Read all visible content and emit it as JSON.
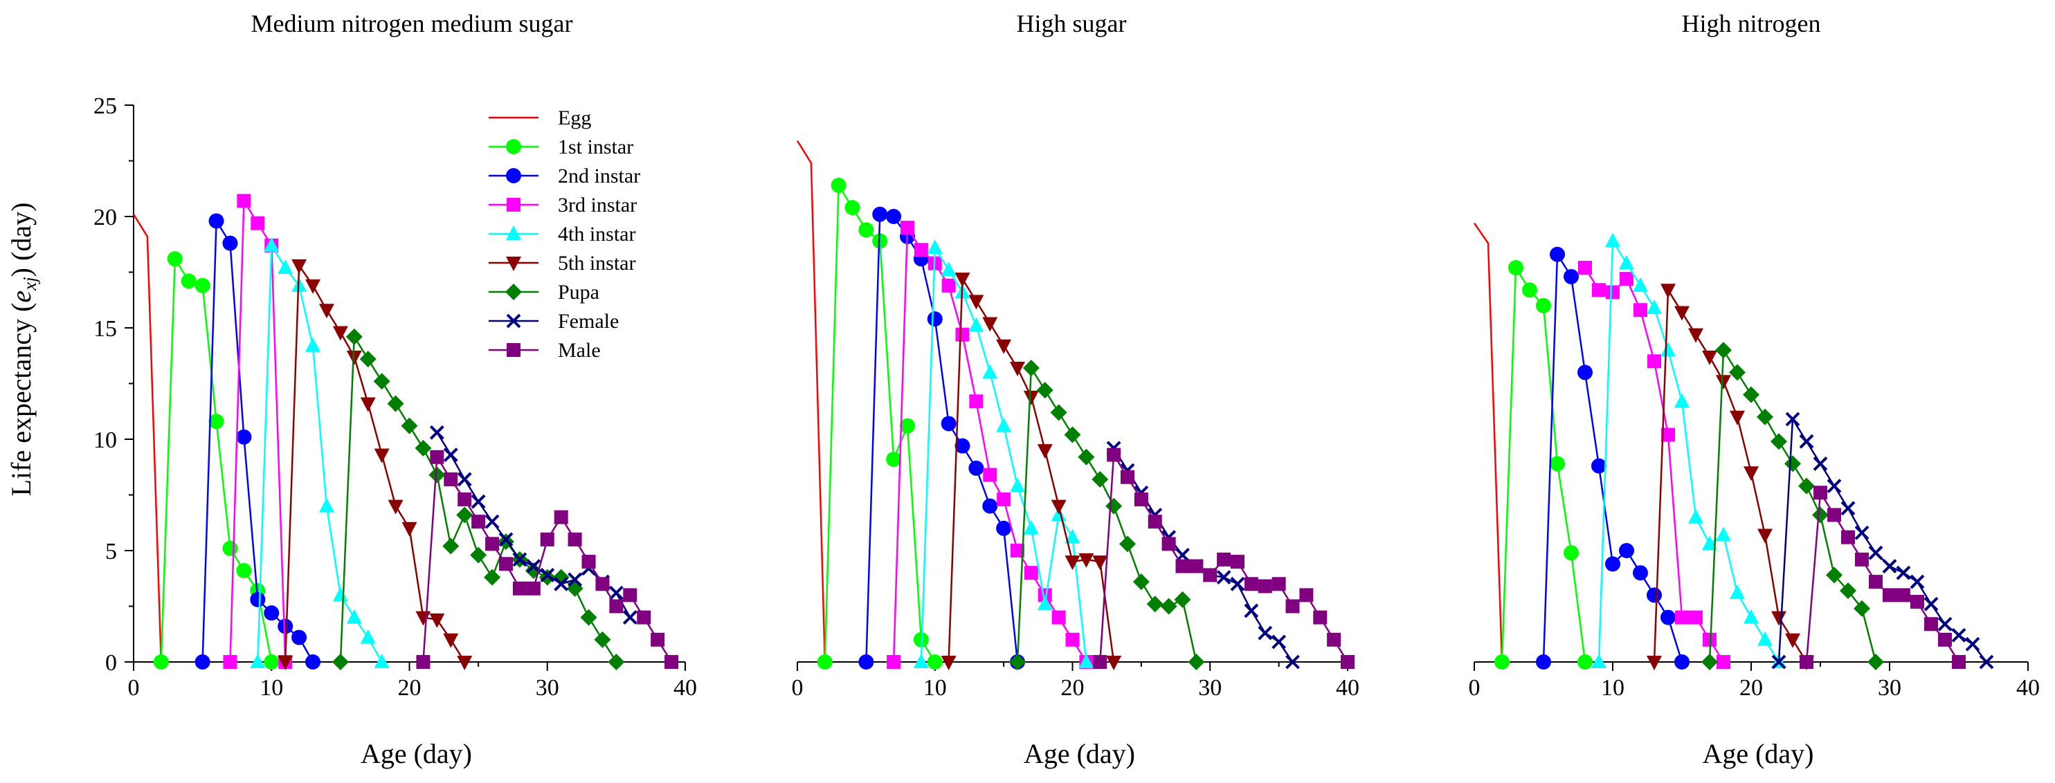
{
  "figure": {
    "y_axis_label": {
      "main": "Life expectancy (",
      "italic": "e",
      "sub": "xj",
      "tail": ") (day)"
    },
    "legend_entries": [
      "Egg",
      "1st instar",
      "2nd instar",
      "3rd instar",
      "4th instar",
      "5th instar",
      "Pupa",
      "Female",
      "Male"
    ]
  },
  "stage_styles": [
    {
      "name": "Egg",
      "color": "#ff0000",
      "marker": "none"
    },
    {
      "name": "1st instar",
      "color": "#00ff00",
      "marker": "circle"
    },
    {
      "name": "2nd instar",
      "color": "#0000ff",
      "marker": "circle"
    },
    {
      "name": "3rd instar",
      "color": "#ff00ff",
      "marker": "square"
    },
    {
      "name": "4th instar",
      "color": "#00ffff",
      "marker": "triangle-up"
    },
    {
      "name": "5th instar",
      "color": "#8b0000",
      "marker": "triangle-down"
    },
    {
      "name": "Pupa",
      "color": "#007f00",
      "marker": "diamond"
    },
    {
      "name": "Female",
      "color": "#000080",
      "marker": "x"
    },
    {
      "name": "Male",
      "color": "#800080",
      "marker": "square"
    }
  ],
  "chart_data": [
    {
      "type": "line",
      "title": "Medium nitrogen medium sugar",
      "xlabel": "Age (day)",
      "ylabel": "Life expectancy (exj) (day)",
      "xlim": [
        0,
        40
      ],
      "ylim": [
        0,
        25
      ],
      "xticks": [
        0,
        10,
        20,
        30,
        40
      ],
      "yticks": [
        0,
        5,
        10,
        15,
        20,
        25
      ],
      "show_y_axis": true,
      "legend": "top-right of panel",
      "series": [
        {
          "name": "Egg",
          "x": [
            0,
            1,
            2
          ],
          "y": [
            20.1,
            19.1,
            0
          ]
        },
        {
          "name": "1st instar",
          "x": [
            2,
            3,
            4,
            5,
            6,
            7,
            8,
            9,
            10
          ],
          "y": [
            0,
            18.1,
            17.1,
            16.9,
            10.8,
            5.1,
            4.1,
            3.2,
            0
          ]
        },
        {
          "name": "2nd instar",
          "x": [
            5,
            6,
            7,
            8,
            9,
            10,
            11,
            12,
            13
          ],
          "y": [
            0,
            19.8,
            18.8,
            10.1,
            2.8,
            2.2,
            1.6,
            1.1,
            0
          ]
        },
        {
          "name": "3rd instar",
          "x": [
            7,
            8,
            9,
            10,
            11
          ],
          "y": [
            0,
            20.7,
            19.7,
            18.7,
            0
          ]
        },
        {
          "name": "4th instar",
          "x": [
            9,
            10,
            11,
            12,
            13,
            14,
            15,
            16,
            17,
            18
          ],
          "y": [
            0,
            18.7,
            17.7,
            16.9,
            14.2,
            7.0,
            3.0,
            2.0,
            1.1,
            0
          ]
        },
        {
          "name": "5th instar",
          "x": [
            11,
            12,
            13,
            14,
            15,
            16,
            17,
            18,
            19,
            20,
            21,
            22,
            23,
            24
          ],
          "y": [
            0,
            17.8,
            16.9,
            15.8,
            14.8,
            13.7,
            11.6,
            9.3,
            7.0,
            6.0,
            2.0,
            1.9,
            1.0,
            0
          ]
        },
        {
          "name": "Pupa",
          "x": [
            15,
            16,
            17,
            18,
            19,
            20,
            21,
            22,
            23,
            24,
            25,
            26,
            27,
            28,
            29,
            30,
            31,
            32,
            33,
            34,
            35
          ],
          "y": [
            0,
            14.6,
            13.6,
            12.6,
            11.6,
            10.6,
            9.6,
            8.4,
            5.2,
            6.6,
            4.8,
            3.8,
            5.4,
            4.6,
            4.1,
            3.8,
            3.8,
            3.3,
            2.0,
            1.0,
            0
          ]
        },
        {
          "name": "Female",
          "x": [
            22,
            23,
            24,
            25,
            26,
            27,
            28,
            29,
            30,
            31,
            32,
            33,
            34,
            35,
            36
          ],
          "y": [
            10.3,
            9.3,
            8.2,
            7.2,
            6.3,
            5.5,
            4.6,
            4.3,
            3.9,
            3.5,
            3.7,
            4.2,
            3.6,
            3.1,
            2.0
          ]
        },
        {
          "name": "Male",
          "x": [
            21,
            22,
            23,
            24,
            25,
            26,
            27,
            28,
            29,
            30,
            31,
            32,
            33,
            34,
            35,
            36,
            37,
            38,
            39
          ],
          "y": [
            0,
            9.2,
            8.2,
            7.3,
            6.3,
            5.3,
            4.4,
            3.3,
            3.3,
            5.5,
            6.5,
            5.5,
            4.5,
            3.5,
            2.5,
            3.0,
            2.0,
            1.0,
            0
          ]
        }
      ]
    },
    {
      "type": "line",
      "title": "High sugar",
      "xlabel": "Age (day)",
      "ylabel": "",
      "xlim": [
        0,
        40
      ],
      "ylim": [
        0,
        25
      ],
      "xticks": [
        0,
        10,
        20,
        30,
        40
      ],
      "yticks": [],
      "show_y_axis": false,
      "series": [
        {
          "name": "Egg",
          "x": [
            0,
            1,
            2
          ],
          "y": [
            23.4,
            22.4,
            0
          ]
        },
        {
          "name": "1st instar",
          "x": [
            2,
            3,
            4,
            5,
            6,
            7,
            8,
            9,
            10
          ],
          "y": [
            0,
            21.4,
            20.4,
            19.4,
            18.9,
            9.1,
            10.6,
            1.0,
            0
          ]
        },
        {
          "name": "2nd instar",
          "x": [
            5,
            6,
            7,
            8,
            9,
            10,
            11,
            12,
            13,
            14,
            15,
            16
          ],
          "y": [
            0,
            20.1,
            20.0,
            19.1,
            18.1,
            15.4,
            10.7,
            9.7,
            8.7,
            7.0,
            6.0,
            0
          ]
        },
        {
          "name": "3rd instar",
          "x": [
            7,
            8,
            9,
            10,
            11,
            12,
            13,
            14,
            15,
            16,
            17,
            18,
            19,
            20,
            21
          ],
          "y": [
            0,
            19.5,
            18.5,
            17.9,
            16.9,
            14.7,
            11.7,
            8.4,
            7.3,
            5.0,
            4.0,
            3.0,
            2.0,
            1.0,
            0
          ]
        },
        {
          "name": "4th instar",
          "x": [
            9,
            10,
            11,
            12,
            13,
            14,
            15,
            16,
            17,
            18,
            19,
            20,
            21
          ],
          "y": [
            0,
            18.6,
            17.6,
            16.6,
            15.1,
            13.0,
            10.6,
            7.9,
            6.0,
            2.6,
            6.6,
            5.6,
            0
          ]
        },
        {
          "name": "5th instar",
          "x": [
            11,
            12,
            13,
            14,
            15,
            16,
            17,
            18,
            19,
            20,
            21,
            22,
            23
          ],
          "y": [
            0,
            17.2,
            16.2,
            15.2,
            14.2,
            13.2,
            11.9,
            9.5,
            7.0,
            4.5,
            4.6,
            4.5,
            0
          ]
        },
        {
          "name": "Pupa",
          "x": [
            16,
            17,
            18,
            19,
            20,
            21,
            22,
            23,
            24,
            25,
            26,
            27,
            28,
            29
          ],
          "y": [
            0,
            13.2,
            12.2,
            11.2,
            10.2,
            9.2,
            8.2,
            7.0,
            5.3,
            3.6,
            2.6,
            2.5,
            2.8,
            0
          ]
        },
        {
          "name": "Female",
          "x": [
            23,
            24,
            25,
            26,
            27,
            28,
            29,
            30,
            31,
            32,
            33,
            34,
            35,
            36
          ],
          "y": [
            9.6,
            8.6,
            7.6,
            6.6,
            5.6,
            4.8,
            4.3,
            3.9,
            3.8,
            3.5,
            2.3,
            1.3,
            0.9,
            0
          ]
        },
        {
          "name": "Male",
          "x": [
            22,
            23,
            24,
            25,
            26,
            27,
            28,
            29,
            30,
            31,
            32,
            33,
            34,
            35,
            36,
            37,
            38,
            39,
            40
          ],
          "y": [
            0,
            9.3,
            8.3,
            7.3,
            6.3,
            5.3,
            4.3,
            4.3,
            3.9,
            4.6,
            4.5,
            3.5,
            3.4,
            3.5,
            2.5,
            3.0,
            2.0,
            1.0,
            0
          ]
        }
      ]
    },
    {
      "type": "line",
      "title": "High nitrogen",
      "xlabel": "Age (day)",
      "ylabel": "",
      "xlim": [
        0,
        40
      ],
      "ylim": [
        0,
        25
      ],
      "xticks": [
        0,
        10,
        20,
        30,
        40
      ],
      "yticks": [],
      "show_y_axis": false,
      "series": [
        {
          "name": "Egg",
          "x": [
            0,
            1,
            2
          ],
          "y": [
            19.7,
            18.8,
            0
          ]
        },
        {
          "name": "1st instar",
          "x": [
            2,
            3,
            4,
            5,
            6,
            7,
            8
          ],
          "y": [
            0,
            17.7,
            16.7,
            16.0,
            8.9,
            4.9,
            0
          ]
        },
        {
          "name": "2nd instar",
          "x": [
            5,
            6,
            7,
            8,
            9,
            10,
            11,
            12,
            13,
            14,
            15
          ],
          "y": [
            0,
            18.3,
            17.3,
            13.0,
            8.8,
            4.4,
            5.0,
            4.0,
            3.0,
            2.0,
            0
          ]
        },
        {
          "name": "3rd instar",
          "x": [
            8,
            9,
            10,
            11,
            12,
            13,
            14,
            15,
            16,
            17,
            18
          ],
          "y": [
            17.7,
            16.7,
            16.6,
            17.2,
            15.8,
            13.5,
            10.2,
            2.0,
            2.0,
            1.0,
            0
          ]
        },
        {
          "name": "4th instar",
          "x": [
            9,
            10,
            11,
            12,
            13,
            14,
            15,
            16,
            17,
            18,
            19,
            20,
            21,
            22
          ],
          "y": [
            0,
            18.9,
            17.9,
            16.9,
            15.9,
            14.0,
            11.7,
            6.5,
            5.3,
            5.7,
            3.1,
            2.0,
            1.0,
            0
          ]
        },
        {
          "name": "5th instar",
          "x": [
            13,
            14,
            15,
            16,
            17,
            18,
            19,
            20,
            21,
            22,
            23,
            24
          ],
          "y": [
            0,
            16.7,
            15.7,
            14.7,
            13.7,
            12.6,
            11.0,
            8.5,
            5.7,
            2.0,
            1.0,
            0
          ]
        },
        {
          "name": "Pupa",
          "x": [
            17,
            18,
            19,
            20,
            21,
            22,
            23,
            24,
            25,
            26,
            27,
            28,
            29
          ],
          "y": [
            0,
            14.0,
            13.0,
            12.0,
            11.0,
            9.9,
            8.9,
            7.9,
            6.6,
            3.9,
            3.2,
            2.4,
            0
          ]
        },
        {
          "name": "Female",
          "x": [
            22,
            23,
            24,
            25,
            26,
            27,
            28,
            29,
            30,
            31,
            32,
            33,
            34,
            35,
            36,
            37
          ],
          "y": [
            0,
            10.9,
            9.9,
            8.9,
            7.9,
            6.9,
            5.8,
            4.9,
            4.3,
            4.0,
            3.6,
            2.6,
            1.7,
            1.2,
            0.8,
            0
          ]
        },
        {
          "name": "Male",
          "x": [
            24,
            25,
            26,
            27,
            28,
            29,
            30,
            31,
            32,
            33,
            34,
            35
          ],
          "y": [
            0,
            7.6,
            6.6,
            5.6,
            4.6,
            3.6,
            3.0,
            3.0,
            2.7,
            1.7,
            1.0,
            0
          ]
        }
      ]
    }
  ]
}
